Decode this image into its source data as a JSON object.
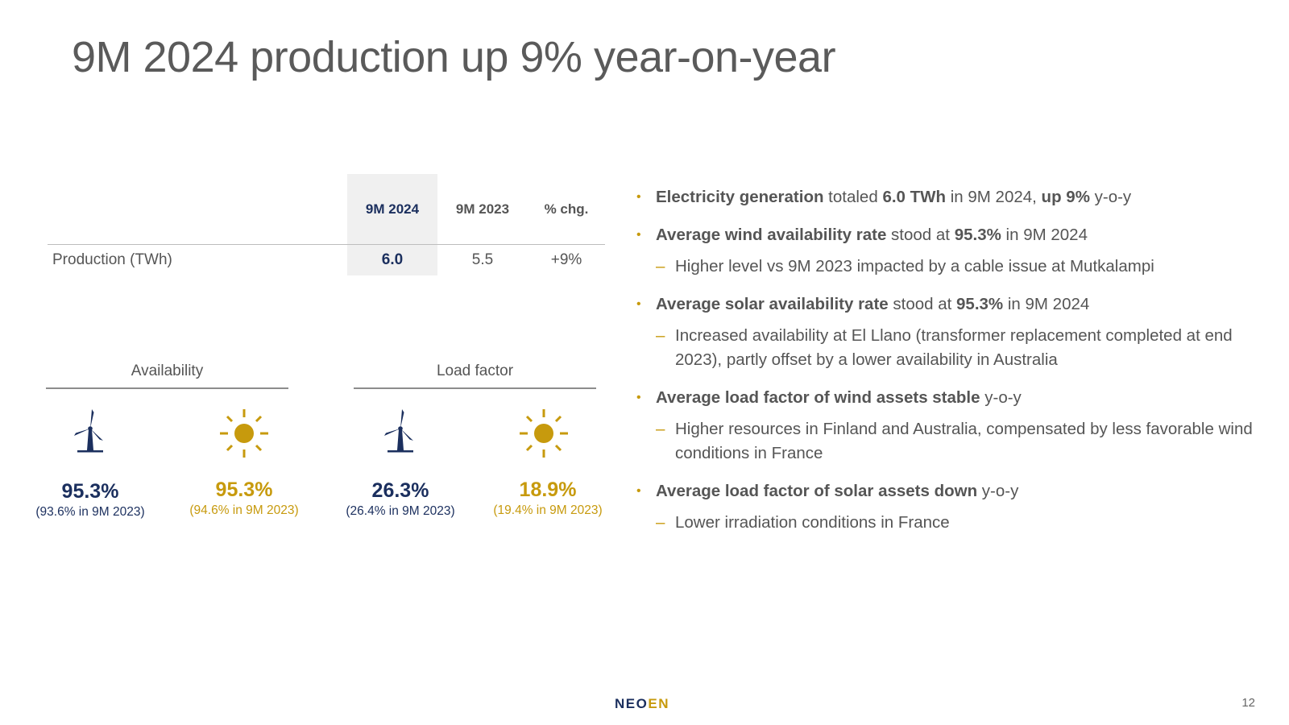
{
  "title": "9M 2024 production up 9% year-on-year",
  "table": {
    "headers": [
      "9M 2024",
      "9M 2023",
      "% chg."
    ],
    "row_label": "Production (TWh)",
    "values": [
      "6.0",
      "5.5",
      "+9%"
    ]
  },
  "kpis": {
    "availability": {
      "title": "Availability",
      "wind": {
        "value": "95.3%",
        "prev": "(93.6% in 9M 2023)"
      },
      "solar": {
        "value": "95.3%",
        "prev": "(94.6% in 9M 2023)"
      }
    },
    "load_factor": {
      "title": "Load factor",
      "wind": {
        "value": "26.3%",
        "prev": "(26.4% in 9M 2023)"
      },
      "solar": {
        "value": "18.9%",
        "prev": "(19.4% in 9M 2023)"
      }
    }
  },
  "bullets": {
    "b1": {
      "bold1": "Electricity generation",
      "t1": " totaled ",
      "bold2": "6.0 TWh",
      "t2": " in 9M 2024, ",
      "bold3": "up 9%",
      "t3": " y-o-y"
    },
    "b2": {
      "bold1": "Average wind availability rate",
      "t1": " stood at ",
      "bold2": "95.3%",
      "t2": " in 9M 2024",
      "sub": "Higher level vs 9M 2023 impacted by a cable issue at Mutkalampi"
    },
    "b3": {
      "bold1": "Average solar availability rate",
      "t1": " stood at ",
      "bold2": "95.3%",
      "t2": " in 9M 2024",
      "sub": "Increased availability at El Llano (transformer replacement completed at end 2023), partly offset by a lower availability in Australia"
    },
    "b4": {
      "bold1": "Average load factor of wind assets stable",
      "t1": " y-o-y",
      "sub": "Higher resources in Finland and Australia, compensated by less favorable wind conditions in France"
    },
    "b5": {
      "bold1": "Average load factor of solar assets down",
      "t1": " y-o-y",
      "sub": "Lower irradiation conditions in France"
    },
    "bullet_glyph": "•",
    "dash_glyph": "–"
  },
  "footer": {
    "brand_main": "NEO",
    "brand_accent": "EN",
    "page": "12"
  },
  "colors": {
    "navy": "#1b2f5e",
    "gold": "#c79a0d",
    "text": "#555555"
  },
  "icons": {
    "wind": "wind-turbine-icon",
    "solar": "sun-icon"
  }
}
